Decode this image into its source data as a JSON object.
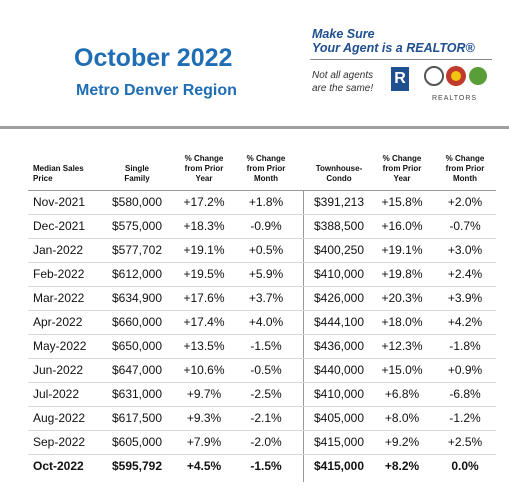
{
  "header": {
    "title": "October 2022",
    "subtitle": "Metro Denver Region",
    "promo": {
      "line1": "Make Sure",
      "line2": "Your Agent is a REALTOR®",
      "note1": "Not all agents",
      "note2": "are the same!",
      "logo_text": "REALTORS"
    }
  },
  "table": {
    "columns": [
      [
        "Median Sales",
        "Price"
      ],
      [
        "Single",
        "Family"
      ],
      [
        "% Change",
        "from Prior",
        "Year"
      ],
      [
        "% Change",
        "from Prior",
        "Month"
      ],
      [
        "Townhouse-",
        "Condo"
      ],
      [
        "% Change",
        "from Prior",
        "Year"
      ],
      [
        "% Change",
        "from Prior",
        "Month"
      ]
    ],
    "rows": [
      [
        "Nov-2021",
        "$580,000",
        "+17.2%",
        "+1.8%",
        "$391,213",
        "+15.8%",
        "+2.0%"
      ],
      [
        "Dec-2021",
        "$575,000",
        "+18.3%",
        "-0.9%",
        "$388,500",
        "+16.0%",
        "-0.7%"
      ],
      [
        "Jan-2022",
        "$577,702",
        "+19.1%",
        "+0.5%",
        "$400,250",
        "+19.1%",
        "+3.0%"
      ],
      [
        "Feb-2022",
        "$612,000",
        "+19.5%",
        "+5.9%",
        "$410,000",
        "+19.8%",
        "+2.4%"
      ],
      [
        "Mar-2022",
        "$634,900",
        "+17.6%",
        "+3.7%",
        "$426,000",
        "+20.3%",
        "+3.9%"
      ],
      [
        "Apr-2022",
        "$660,000",
        "+17.4%",
        "+4.0%",
        "$444,100",
        "+18.0%",
        "+4.2%"
      ],
      [
        "May-2022",
        "$650,000",
        "+13.5%",
        "-1.5%",
        "$436,000",
        "+12.3%",
        "-1.8%"
      ],
      [
        "Jun-2022",
        "$647,000",
        "+10.6%",
        "-0.5%",
        "$440,000",
        "+15.0%",
        "+0.9%"
      ],
      [
        "Jul-2022",
        "$631,000",
        "+9.7%",
        "-2.5%",
        "$410,000",
        "+6.8%",
        "-6.8%"
      ],
      [
        "Aug-2022",
        "$617,500",
        "+9.3%",
        "-2.1%",
        "$405,000",
        "+8.0%",
        "-1.2%"
      ],
      [
        "Sep-2022",
        "$605,000",
        "+7.9%",
        "-2.0%",
        "$415,000",
        "+9.2%",
        "+2.5%"
      ],
      [
        "Oct-2022",
        "$595,792",
        "+4.5%",
        "-1.5%",
        "$415,000",
        "+8.2%",
        "0.0%"
      ]
    ]
  }
}
